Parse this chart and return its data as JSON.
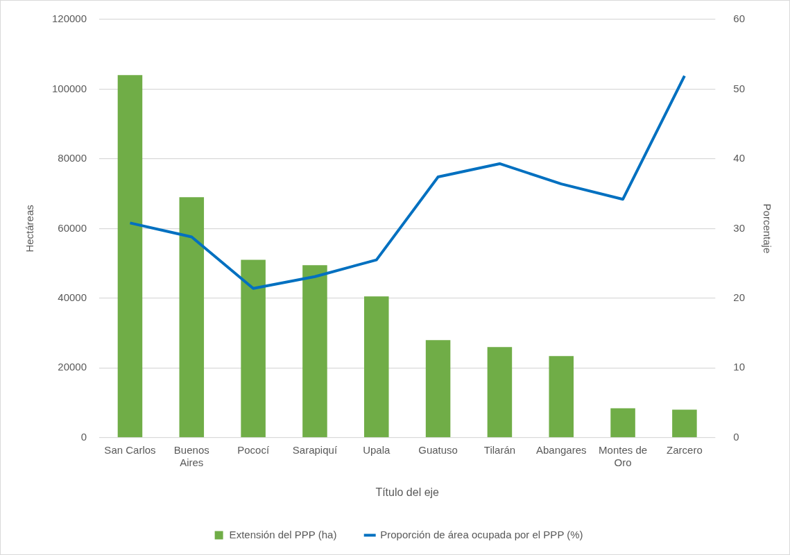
{
  "chart_data": {
    "type": "bar",
    "xlabel": "Título del eje",
    "ylabel": "Hectáreas",
    "y2label": "Porcentaje",
    "categories": [
      "San Carlos",
      "Buenos Aires",
      "Pococí",
      "Sarapiquí",
      "Upala",
      "Guatuso",
      "Tilarán",
      "Abangares",
      "Montes de Oro",
      "Zarcero"
    ],
    "series": [
      {
        "name": "Extensión del PPP (ha)",
        "color": "#70ad47",
        "values": [
          104000,
          69000,
          51000,
          49500,
          40500,
          28000,
          26000,
          23400,
          8400,
          8000
        ]
      },
      {
        "name": "Proporción de área ocupada por el PPP (%)",
        "type": "line",
        "axis": "y2",
        "color": "#0070c0",
        "marker": "none",
        "values": [
          30.8,
          28.8,
          21.4,
          23.1,
          25.5,
          37.4,
          39.3,
          36.4,
          34.2,
          51.9
        ]
      }
    ],
    "ylim": [
      0,
      120000
    ],
    "yticks": [
      0,
      20000,
      40000,
      60000,
      80000,
      100000,
      120000
    ],
    "y2lim": [
      0,
      60
    ],
    "y2ticks": [
      0,
      10,
      20,
      30,
      40,
      50,
      60
    ],
    "grid": "y",
    "legend": "bottom"
  }
}
